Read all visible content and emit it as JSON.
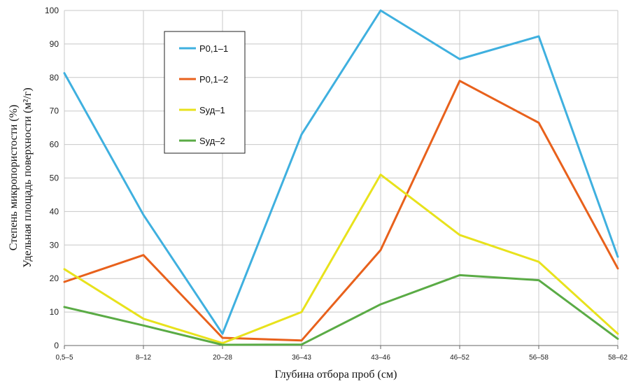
{
  "chart_data": {
    "type": "line",
    "categories": [
      "0,5–5",
      "8–12",
      "20–28",
      "36–43",
      "43–46",
      "46–52",
      "56–58",
      "58–62"
    ],
    "series": [
      {
        "name": "P0,1–1",
        "color": "#3fb0df",
        "values": [
          81.3,
          39,
          3.5,
          63,
          100,
          85.5,
          92.3,
          26.5
        ]
      },
      {
        "name": "P0,1–2",
        "color": "#e8611c",
        "values": [
          19,
          27,
          2.3,
          1.5,
          28.5,
          79,
          66.5,
          23
        ]
      },
      {
        "name": "Sуд–1",
        "color": "#e8e21c",
        "values": [
          22.8,
          8,
          0.7,
          10,
          51,
          33,
          25,
          3.5
        ]
      },
      {
        "name": "Sуд–2",
        "color": "#5aab45",
        "values": [
          11.5,
          6,
          0.2,
          0.3,
          12.3,
          21,
          19.5,
          2
        ]
      }
    ],
    "xlabel": "Глубина отбора проб (см)",
    "ylabel": [
      "Степень микропористости (%)",
      "Удельная площадь поверхности (м²/г)"
    ],
    "ylim": [
      0,
      100
    ],
    "yticks": [
      0,
      10,
      20,
      30,
      40,
      50,
      60,
      70,
      80,
      90,
      100
    ],
    "grid": true,
    "legend_position": "top-left"
  }
}
